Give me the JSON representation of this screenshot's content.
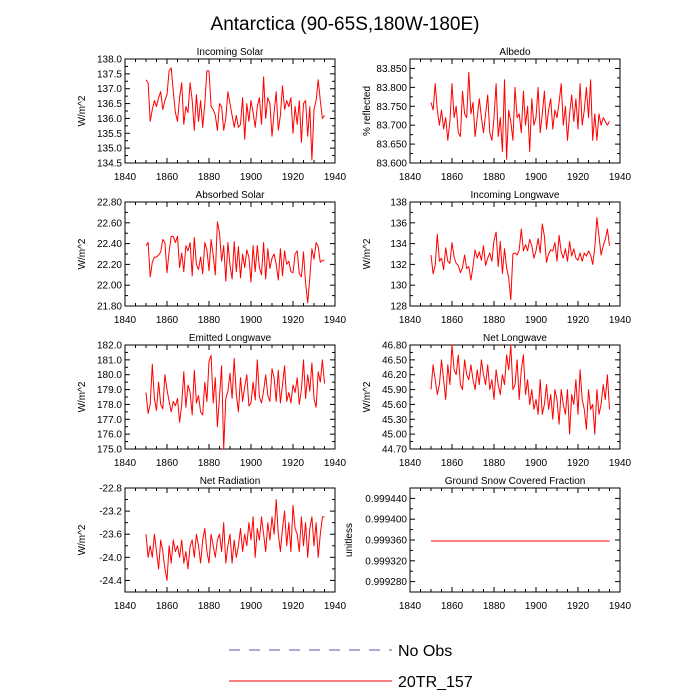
{
  "figure": {
    "title": "Antarctica (90-65S,180W-180E)"
  },
  "legend": {
    "entries": [
      {
        "label": "No Obs",
        "color": "#5555aa",
        "dash": true
      },
      {
        "label": "20TR_157",
        "color": "#ff0000",
        "dash": false
      }
    ]
  },
  "line_color": "#ff0000",
  "chart_data": [
    {
      "type": "line",
      "title": "Incoming Solar",
      "ylabel": "W/m^2",
      "xlabel": "",
      "xlim": [
        1840,
        1940
      ],
      "xticks": [
        1840,
        1860,
        1880,
        1900,
        1920,
        1940
      ],
      "ylim": [
        134.5,
        138.0
      ],
      "yticks": [
        134.5,
        135.0,
        135.5,
        136.0,
        136.5,
        137.0,
        137.5,
        138.0
      ],
      "ytick_labels": [
        "134.5",
        "135.0",
        "135.5",
        "136.0",
        "136.5",
        "137.0",
        "137.5",
        "138.0"
      ],
      "x_start": 1850,
      "series": [
        {
          "name": "20TR_157",
          "values": [
            137.3,
            137.2,
            135.9,
            136.3,
            136.6,
            136.4,
            136.7,
            136.9,
            136.3,
            136.6,
            136.8,
            137.6,
            137.7,
            136.9,
            136.2,
            135.9,
            136.7,
            137.2,
            135.8,
            136.4,
            136.2,
            137.2,
            136.6,
            135.6,
            136.8,
            135.9,
            136.6,
            135.7,
            136.5,
            137.6,
            137.6,
            136.4,
            136.3,
            136.1,
            135.6,
            136.5,
            136.4,
            135.6,
            136.0,
            136.9,
            136.5,
            136.1,
            135.7,
            136.1,
            135.7,
            135.8,
            136.7,
            135.3,
            136.5,
            135.9,
            136.6,
            136.2,
            135.7,
            136.4,
            136.7,
            135.8,
            137.4,
            136.0,
            136.7,
            136.5,
            135.4,
            136.2,
            136.9,
            135.6,
            136.1,
            137.1,
            136.3,
            136.6,
            136.4,
            136.7,
            135.5,
            136.4,
            135.8,
            136.6,
            135.2,
            136.5,
            136.6,
            135.4,
            136.4,
            134.6,
            136.3,
            136.6,
            137.3,
            136.6,
            136.0,
            136.1
          ]
        }
      ]
    },
    {
      "type": "line",
      "title": "Albedo",
      "ylabel": "% reflected",
      "xlabel": "",
      "xlim": [
        1840,
        1940
      ],
      "xticks": [
        1840,
        1860,
        1880,
        1900,
        1920,
        1940
      ],
      "ylim": [
        83.6,
        83.875
      ],
      "yticks": [
        83.6,
        83.65,
        83.7,
        83.75,
        83.8,
        83.85
      ],
      "ytick_labels": [
        "83.600",
        "83.650",
        "83.700",
        "83.750",
        "83.800",
        "83.850"
      ],
      "x_start": 1850,
      "series": [
        {
          "name": "20TR_157",
          "values": [
            83.76,
            83.74,
            83.81,
            83.74,
            83.7,
            83.74,
            83.69,
            83.72,
            83.66,
            83.71,
            83.81,
            83.72,
            83.75,
            83.68,
            83.67,
            83.79,
            83.73,
            83.72,
            83.84,
            83.73,
            83.76,
            83.67,
            83.72,
            83.77,
            83.72,
            83.68,
            83.73,
            83.78,
            83.68,
            83.66,
            83.72,
            83.81,
            83.67,
            83.72,
            83.63,
            83.82,
            83.61,
            83.74,
            83.71,
            83.66,
            83.8,
            83.72,
            83.73,
            83.68,
            83.79,
            83.7,
            83.75,
            83.63,
            83.77,
            83.7,
            83.72,
            83.8,
            83.68,
            83.73,
            83.79,
            83.69,
            83.74,
            83.77,
            83.69,
            83.74,
            83.72,
            83.76,
            83.81,
            83.7,
            83.75,
            83.66,
            83.73,
            83.78,
            83.71,
            83.77,
            83.69,
            83.81,
            83.7,
            83.74,
            83.8,
            83.72,
            83.82,
            83.66,
            83.73,
            83.66,
            83.73,
            83.7,
            83.72,
            83.71,
            83.7,
            83.71
          ]
        }
      ]
    },
    {
      "type": "line",
      "title": "Absorbed Solar",
      "ylabel": "W/m^2",
      "xlabel": "",
      "xlim": [
        1840,
        1940
      ],
      "xticks": [
        1840,
        1860,
        1880,
        1900,
        1920,
        1940
      ],
      "ylim": [
        21.8,
        22.8
      ],
      "yticks": [
        21.8,
        22.0,
        22.2,
        22.4,
        22.6,
        22.8
      ],
      "ytick_labels": [
        "21.80",
        "22.00",
        "22.20",
        "22.40",
        "22.60",
        "22.80"
      ],
      "x_start": 1850,
      "series": [
        {
          "name": "20TR_157",
          "values": [
            22.38,
            22.41,
            22.08,
            22.22,
            22.27,
            22.27,
            22.29,
            22.32,
            22.44,
            22.41,
            22.12,
            22.32,
            22.47,
            22.47,
            22.41,
            22.47,
            22.17,
            22.31,
            22.13,
            22.38,
            22.33,
            22.41,
            22.09,
            22.46,
            22.2,
            22.15,
            22.27,
            22.11,
            22.41,
            22.34,
            22.14,
            22.44,
            22.29,
            22.1,
            22.61,
            22.5,
            22.23,
            22.38,
            22.04,
            22.41,
            22.19,
            22.06,
            22.42,
            22.13,
            22.37,
            22.07,
            22.3,
            22.17,
            22.34,
            22.27,
            22.03,
            22.38,
            22.13,
            22.38,
            22.17,
            22.1,
            22.41,
            22.06,
            22.35,
            22.16,
            22.26,
            22.3,
            22.2,
            22.05,
            22.35,
            22.09,
            22.33,
            22.2,
            22.23,
            22.13,
            22.12,
            22.3,
            22.33,
            22.11,
            22.08,
            22.32,
            22.02,
            21.83,
            22.07,
            22.35,
            22.25,
            22.41,
            22.37,
            22.22,
            22.24,
            22.24
          ]
        }
      ]
    },
    {
      "type": "line",
      "title": "Incoming Longwave",
      "ylabel": "W/m^2",
      "xlabel": "",
      "xlim": [
        1840,
        1940
      ],
      "xticks": [
        1840,
        1860,
        1880,
        1900,
        1920,
        1940
      ],
      "ylim": [
        128,
        138
      ],
      "yticks": [
        128,
        130,
        132,
        134,
        136,
        138
      ],
      "ytick_labels": [
        "128",
        "130",
        "132",
        "134",
        "136",
        "138"
      ],
      "x_start": 1850,
      "series": [
        {
          "name": "20TR_157",
          "values": [
            132.9,
            131.1,
            131.9,
            134.9,
            132.3,
            132.6,
            131.5,
            133.6,
            132.3,
            132.1,
            134.1,
            132.7,
            132.1,
            131.9,
            131.2,
            131.7,
            132.9,
            131.6,
            131.8,
            130.5,
            131.8,
            133.4,
            132.6,
            133.2,
            132.4,
            133.8,
            131.9,
            132.6,
            133.1,
            132.3,
            134.3,
            135.1,
            131.8,
            134.2,
            131.1,
            133.5,
            131.7,
            130.7,
            128.6,
            133.0,
            133.1,
            132.9,
            133.4,
            135.4,
            133.3,
            133.9,
            133.3,
            134.4,
            133.8,
            132.6,
            133.3,
            134.5,
            133.1,
            135.9,
            134.7,
            132.2,
            133.0,
            133.4,
            133.3,
            134.1,
            132.3,
            134.8,
            133.2,
            132.6,
            133.5,
            132.3,
            134.2,
            132.8,
            133.5,
            132.6,
            132.4,
            133.1,
            132.3,
            133.1,
            132.8,
            133.3,
            132.9,
            132.0,
            133.6,
            136.5,
            134.7,
            132.9,
            133.8,
            134.4,
            135.4,
            133.8
          ]
        }
      ]
    },
    {
      "type": "line",
      "title": "Emitted Longwave",
      "ylabel": "W/m^2",
      "xlabel": "",
      "xlim": [
        1840,
        1940
      ],
      "xticks": [
        1840,
        1860,
        1880,
        1900,
        1920,
        1940
      ],
      "ylim": [
        175.0,
        182.0
      ],
      "yticks": [
        175,
        176,
        177,
        178,
        179,
        180,
        181,
        182
      ],
      "ytick_labels": [
        "175.0",
        "176.0",
        "177.0",
        "178.0",
        "179.0",
        "180.0",
        "181.0",
        "182.0"
      ],
      "x_start": 1850,
      "series": [
        {
          "name": "20TR_157",
          "values": [
            178.8,
            177.4,
            178.0,
            180.7,
            178.4,
            177.6,
            179.5,
            178.0,
            177.7,
            180.0,
            179.0,
            178.2,
            177.5,
            178.2,
            177.9,
            178.4,
            176.8,
            178.0,
            180.2,
            177.8,
            179.3,
            178.8,
            177.3,
            180.3,
            178.1,
            178.6,
            177.5,
            177.3,
            179.5,
            178.2,
            180.9,
            181.3,
            178.1,
            179.8,
            176.5,
            178.5,
            180.6,
            175.0,
            178.4,
            178.9,
            180.1,
            178.4,
            181.1,
            178.7,
            177.5,
            179.8,
            178.2,
            179.2,
            180.0,
            177.9,
            178.1,
            179.5,
            178.3,
            181.0,
            178.5,
            178.1,
            178.9,
            180.0,
            178.6,
            178.2,
            180.4,
            179.8,
            178.2,
            180.3,
            178.1,
            179.3,
            180.6,
            178.2,
            178.8,
            178.1,
            179.3,
            178.8,
            179.8,
            178.0,
            179.0,
            181.0,
            178.4,
            180.0,
            178.9,
            180.8,
            178.4,
            177.8,
            180.2,
            179.5,
            181.0,
            179.4
          ]
        }
      ]
    },
    {
      "type": "line",
      "title": "Net Longwave",
      "ylabel": "W/m^2",
      "xlabel": "",
      "xlim": [
        1840,
        1940
      ],
      "xticks": [
        1840,
        1860,
        1880,
        1900,
        1920,
        1940
      ],
      "ylim": [
        44.7,
        46.8
      ],
      "yticks": [
        44.7,
        45.0,
        45.3,
        45.6,
        45.9,
        46.2,
        46.5,
        46.8
      ],
      "ytick_labels": [
        "44.70",
        "45.00",
        "45.30",
        "45.60",
        "45.90",
        "46.20",
        "46.50",
        "46.80"
      ],
      "x_start": 1850,
      "series": [
        {
          "name": "20TR_157",
          "values": [
            45.9,
            46.4,
            46.1,
            45.8,
            46.0,
            46.5,
            46.1,
            45.7,
            46.4,
            46.0,
            46.8,
            46.3,
            46.2,
            46.6,
            46.0,
            45.9,
            46.5,
            46.2,
            46.1,
            46.4,
            46.1,
            45.9,
            46.3,
            46.0,
            46.5,
            46.2,
            46.0,
            46.4,
            45.9,
            46.1,
            45.7,
            46.3,
            46.0,
            45.8,
            46.2,
            46.0,
            46.6,
            46.3,
            46.8,
            45.9,
            46.0,
            46.5,
            45.7,
            46.3,
            46.6,
            45.8,
            46.1,
            45.6,
            45.9,
            45.5,
            45.7,
            45.4,
            46.1,
            45.4,
            45.6,
            46.0,
            45.5,
            45.8,
            45.3,
            45.9,
            45.7,
            45.2,
            45.9,
            45.6,
            45.4,
            45.9,
            45.0,
            45.8,
            45.6,
            46.1,
            45.4,
            46.3,
            45.7,
            45.5,
            45.1,
            45.9,
            45.5,
            45.6,
            45.0,
            45.9,
            45.4,
            45.6,
            46.0,
            45.7,
            46.2,
            45.5
          ]
        }
      ]
    },
    {
      "type": "line",
      "title": "Net Radiation",
      "ylabel": "W/m^2",
      "xlabel": "",
      "xlim": [
        1840,
        1940
      ],
      "xticks": [
        1840,
        1860,
        1880,
        1900,
        1920,
        1940
      ],
      "ylim": [
        -24.6,
        -22.8
      ],
      "yticks": [
        -24.4,
        -24.0,
        -23.6,
        -23.2,
        -22.8
      ],
      "ytick_labels": [
        "-24.4",
        "-24.0",
        "-23.6",
        "-23.2",
        "-22.8"
      ],
      "x_start": 1850,
      "series": [
        {
          "name": "20TR_157",
          "values": [
            -23.6,
            -24.0,
            -23.8,
            -24.0,
            -23.6,
            -23.9,
            -24.2,
            -23.7,
            -23.9,
            -24.2,
            -24.4,
            -23.8,
            -24.1,
            -23.7,
            -23.9,
            -23.8,
            -24.0,
            -23.7,
            -24.1,
            -23.9,
            -24.2,
            -23.8,
            -23.7,
            -24.0,
            -23.6,
            -23.8,
            -24.1,
            -23.7,
            -23.5,
            -23.9,
            -24.1,
            -23.6,
            -23.8,
            -24.0,
            -23.7,
            -23.6,
            -23.9,
            -23.4,
            -24.1,
            -23.8,
            -23.6,
            -24.1,
            -23.7,
            -24.0,
            -23.8,
            -23.5,
            -23.9,
            -23.6,
            -23.8,
            -23.4,
            -23.7,
            -23.3,
            -24.0,
            -23.5,
            -23.7,
            -23.3,
            -23.6,
            -23.9,
            -23.4,
            -23.7,
            -23.3,
            -23.6,
            -23.0,
            -23.6,
            -23.9,
            -23.5,
            -23.2,
            -23.8,
            -23.4,
            -23.9,
            -23.1,
            -23.5,
            -23.6,
            -23.9,
            -23.3,
            -23.8,
            -23.4,
            -24.0,
            -23.5,
            -23.3,
            -23.8,
            -23.4,
            -24.0,
            -23.6,
            -23.3,
            -23.3
          ]
        }
      ]
    },
    {
      "type": "line",
      "title": "Ground Snow Covered Fraction",
      "ylabel": "unitless",
      "xlabel": "",
      "xlim": [
        1840,
        1940
      ],
      "xticks": [
        1840,
        1860,
        1880,
        1900,
        1920,
        1940
      ],
      "ylim": [
        0.99926,
        0.99946
      ],
      "yticks": [
        0.99928,
        0.99932,
        0.99936,
        0.9994,
        0.99944
      ],
      "ytick_labels": [
        "0.999280",
        "0.999320",
        "0.999360",
        "0.999400",
        "0.999440"
      ],
      "x_start": 1850,
      "series": [
        {
          "name": "20TR_157",
          "values": [
            0.999358,
            0.999358,
            0.999358,
            0.999358,
            0.999358,
            0.999358,
            0.999358,
            0.999358,
            0.999358,
            0.999358,
            0.999358,
            0.999358,
            0.999358,
            0.999358,
            0.999358,
            0.999358,
            0.999358,
            0.999358,
            0.999358,
            0.999358,
            0.999358,
            0.999358,
            0.999358,
            0.999358,
            0.999358,
            0.999358,
            0.999358,
            0.999358,
            0.999358,
            0.999358,
            0.999358,
            0.999358,
            0.999358,
            0.999358,
            0.999358,
            0.999358,
            0.999358,
            0.999358,
            0.999358,
            0.999358,
            0.999358,
            0.999358,
            0.999358,
            0.999358,
            0.999358,
            0.999358,
            0.999358,
            0.999358,
            0.999358,
            0.999358,
            0.999358,
            0.999358,
            0.999358,
            0.999358,
            0.999358,
            0.999358,
            0.999358,
            0.999358,
            0.999358,
            0.999358,
            0.999358,
            0.999358,
            0.999358,
            0.999358,
            0.999358,
            0.999358,
            0.999358,
            0.999358,
            0.999358,
            0.999358,
            0.999358,
            0.999358,
            0.999358,
            0.999358,
            0.999358,
            0.999358,
            0.999358,
            0.999358,
            0.999358,
            0.999358,
            0.999358,
            0.999358,
            0.999358,
            0.999358,
            0.999358,
            0.999358
          ]
        }
      ]
    }
  ]
}
